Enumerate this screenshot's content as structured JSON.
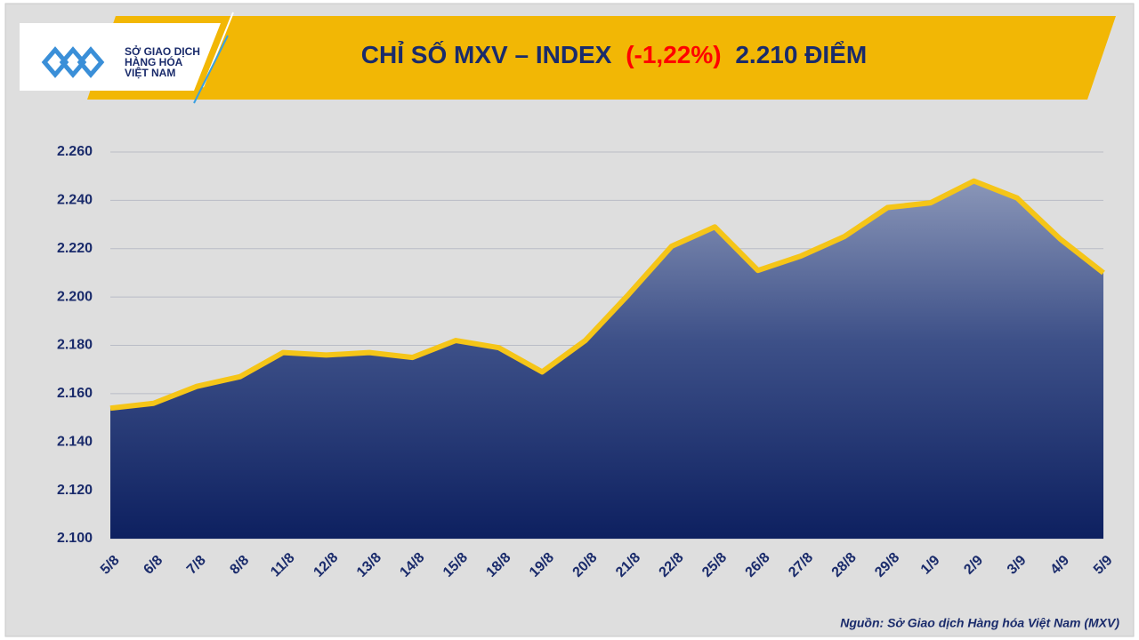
{
  "logo": {
    "lines": [
      "SỞ GIAO DỊCH",
      "HÀNG HÓA",
      "VIỆT NAM"
    ]
  },
  "chart_data": {
    "type": "area",
    "title_parts": [
      "CHỈ SỐ MXV – INDEX",
      "(-1,22%)",
      "2.210 ĐIỂM"
    ],
    "source": "Nguồn: Sở Giao dịch Hàng hóa Việt Nam (MXV)",
    "categories": [
      "5/8",
      "6/8",
      "7/8",
      "8/8",
      "11/8",
      "12/8",
      "13/8",
      "14/8",
      "15/8",
      "18/8",
      "19/8",
      "20/8",
      "21/8",
      "22/8",
      "25/8",
      "26/8",
      "27/8",
      "28/8",
      "29/8",
      "1/9",
      "2/9",
      "3/9",
      "4/9",
      "5/9"
    ],
    "values": [
      2154,
      2156,
      2163,
      2167,
      2177,
      2176,
      2177,
      2175,
      2182,
      2179,
      2169,
      2182,
      2201,
      2221,
      2229,
      2211,
      2217,
      2225,
      2237,
      2239,
      2248,
      2241,
      2224,
      2210
    ],
    "color": "#f5c518",
    "ylim": [
      2100,
      2260
    ],
    "yticks": [
      {
        "value": 2100,
        "label": "2.100"
      },
      {
        "value": 2120,
        "label": "2.120"
      },
      {
        "value": 2140,
        "label": "2.140"
      },
      {
        "value": 2160,
        "label": "2.160"
      },
      {
        "value": 2180,
        "label": "2.180"
      },
      {
        "value": 2200,
        "label": "2.200"
      },
      {
        "value": 2220,
        "label": "2.220"
      },
      {
        "value": 2240,
        "label": "2.240"
      },
      {
        "value": 2260,
        "label": "2.260"
      }
    ],
    "grid": true
  }
}
